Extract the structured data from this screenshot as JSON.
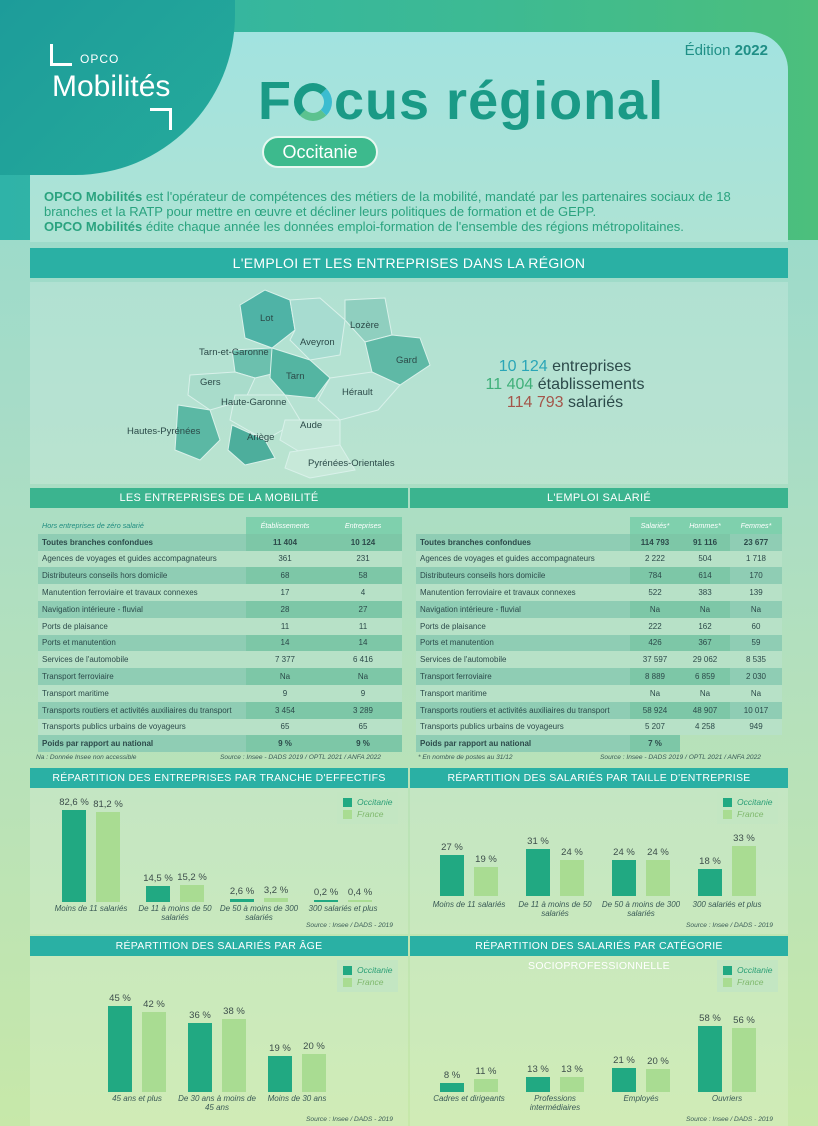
{
  "header": {
    "logo_small": "OPCO",
    "logo_big": "Mobilités",
    "edition_prefix": "Édition",
    "edition_year": "2022",
    "title_f": "F",
    "title_rest": "cus régional",
    "region": "Occitanie"
  },
  "intro": {
    "brand1": "OPCO Mobilités",
    "text1": " est l'opérateur de compétences des métiers de la mobilité, mandaté par les partenaires sociaux de 18 branches et la RATP pour mettre en œuvre et décliner leurs politiques de formation et de GEPP.",
    "brand2": "OPCO Mobilités",
    "text2": " édite chaque année les données emploi-formation de l'ensemble des régions métropolitaines."
  },
  "section_emploi": "L'EMPLOI ET LES ENTREPRISES DANS LA RÉGION",
  "map_labels": [
    "Lot",
    "Aveyron",
    "Lozère",
    "Tarn-et-Garonne",
    "Gard",
    "Gers",
    "Tarn",
    "Hérault",
    "Haute-Garonne",
    "Hautes-Pyrénées",
    "Aude",
    "Ariège",
    "Pyrénées-Orientales"
  ],
  "kpis": [
    {
      "value": "10 124",
      "label": " entreprises"
    },
    {
      "value": "11 404",
      "label": " établissements"
    },
    {
      "value": "114 793",
      "label": " salariés"
    }
  ],
  "table_entreprises": {
    "title": "LES ENTREPRISES DE LA MOBILITÉ",
    "subhead": "Hors entreprises de zéro salarié",
    "col1": "Établissements",
    "col2": "Entreprises",
    "rows": [
      [
        "Toutes branches confondues",
        "11 404",
        "10 124"
      ],
      [
        "Agences de voyages et guides accompagnateurs",
        "361",
        "231"
      ],
      [
        "Distributeurs conseils hors domicile",
        "68",
        "58"
      ],
      [
        "Manutention ferroviaire et travaux connexes",
        "17",
        "4"
      ],
      [
        "Navigation intérieure - fluvial",
        "28",
        "27"
      ],
      [
        "Ports de plaisance",
        "11",
        "11"
      ],
      [
        "Ports et manutention",
        "14",
        "14"
      ],
      [
        "Services de l'automobile",
        "7 377",
        "6 416"
      ],
      [
        "Transport ferroviaire",
        "Na",
        "Na"
      ],
      [
        "Transport maritime",
        "9",
        "9"
      ],
      [
        "Transports routiers et activités auxiliaires du transport",
        "3 454",
        "3 289"
      ],
      [
        "Transports publics urbains de voyageurs",
        "65",
        "65"
      ],
      [
        "Poids par rapport au national",
        "9 %",
        "9 %"
      ]
    ],
    "note_left": "Na : Donnée Insee non accessible",
    "note_right": "Source : Insee - DADS 2019 / OPTL 2021 / ANFA 2022"
  },
  "table_emploi": {
    "title": "L'EMPLOI SALARIÉ",
    "col1": "Salariés*",
    "col2": "Hommes*",
    "col3": "Femmes*",
    "rows": [
      [
        "Toutes branches confondues",
        "114 793",
        "91 116",
        "23 677"
      ],
      [
        "Agences de voyages et guides accompagnateurs",
        "2 222",
        "504",
        "1 718"
      ],
      [
        "Distributeurs conseils hors domicile",
        "784",
        "614",
        "170"
      ],
      [
        "Manutention ferroviaire et travaux connexes",
        "522",
        "383",
        "139"
      ],
      [
        "Navigation intérieure - fluvial",
        "Na",
        "Na",
        "Na"
      ],
      [
        "Ports de plaisance",
        "222",
        "162",
        "60"
      ],
      [
        "Ports et manutention",
        "426",
        "367",
        "59"
      ],
      [
        "Services de l'automobile",
        "37 597",
        "29 062",
        "8 535"
      ],
      [
        "Transport ferroviaire",
        "8 889",
        "6 859",
        "2 030"
      ],
      [
        "Transport maritime",
        "Na",
        "Na",
        "Na"
      ],
      [
        "Transports routiers et activités auxiliaires du transport",
        "58 924",
        "48 907",
        "10 017"
      ],
      [
        "Transports publics urbains de voyageurs",
        "5 207",
        "4 258",
        "949"
      ],
      [
        "Poids par rapport au national",
        "7 %",
        "",
        ""
      ]
    ],
    "note_left": "* En nombre de postes au 31/12",
    "note_right": "Source : Insee - DADS 2019 / OPTL 2021 / ANFA 2022"
  },
  "legend": {
    "o": "Occitanie",
    "f": "France"
  },
  "source_insee": "Source : Insee / DADS - 2019",
  "chart_data": [
    {
      "type": "bar",
      "title": "RÉPARTITION DES ENTREPRISES PAR TRANCHE D'EFFECTIFS",
      "categories": [
        "Moins de 11 salariés",
        "De 11 à moins de 50 salariés",
        "De 50 à moins de 300 salariés",
        "300 salariés et plus"
      ],
      "series": [
        {
          "name": "Occitanie",
          "values": [
            82.6,
            14.5,
            2.6,
            0.2
          ],
          "labels": [
            "82,6 %",
            "14,5 %",
            "2,6 %",
            "0,2 %"
          ]
        },
        {
          "name": "France",
          "values": [
            81.2,
            15.2,
            3.2,
            0.4
          ],
          "labels": [
            "81,2 %",
            "15,2 %",
            "3,2 %",
            "0,4 %"
          ]
        }
      ]
    },
    {
      "type": "bar",
      "title": "RÉPARTITION DES SALARIÉS PAR TAILLE D'ENTREPRISE",
      "categories": [
        "Moins de 11 salariés",
        "De 11 à moins de 50 salariés",
        "De 50 à moins de 300 salariés",
        "300 salariés et plus"
      ],
      "series": [
        {
          "name": "Occitanie",
          "values": [
            27,
            31,
            24,
            18
          ],
          "labels": [
            "27 %",
            "31 %",
            "24 %",
            "18 %"
          ]
        },
        {
          "name": "France",
          "values": [
            19,
            24,
            24,
            33
          ],
          "labels": [
            "19 %",
            "24 %",
            "24 %",
            "33 %"
          ]
        }
      ]
    },
    {
      "type": "bar",
      "title": "RÉPARTITION DES SALARIÉS PAR ÂGE",
      "categories": [
        "45 ans et plus",
        "De 30 ans à moins de 45 ans",
        "Moins de 30 ans"
      ],
      "series": [
        {
          "name": "Occitanie",
          "values": [
            45,
            36,
            19
          ],
          "labels": [
            "45 %",
            "36 %",
            "19 %"
          ]
        },
        {
          "name": "France",
          "values": [
            42,
            38,
            20
          ],
          "labels": [
            "42 %",
            "38 %",
            "20 %"
          ]
        }
      ]
    },
    {
      "type": "bar",
      "title": "RÉPARTITION DES SALARIÉS PAR CATÉGORIE SOCIOPROFESSIONNELLE",
      "categories": [
        "Cadres et dirigeants",
        "Professions intermédiaires",
        "Employés",
        "Ouvriers"
      ],
      "series": [
        {
          "name": "Occitanie",
          "values": [
            8,
            13,
            21,
            58
          ],
          "labels": [
            "8 %",
            "13 %",
            "21 %",
            "58 %"
          ]
        },
        {
          "name": "France",
          "values": [
            11,
            13,
            20,
            56
          ],
          "labels": [
            "11 %",
            "13 %",
            "20 %",
            "56 %"
          ]
        }
      ]
    }
  ]
}
